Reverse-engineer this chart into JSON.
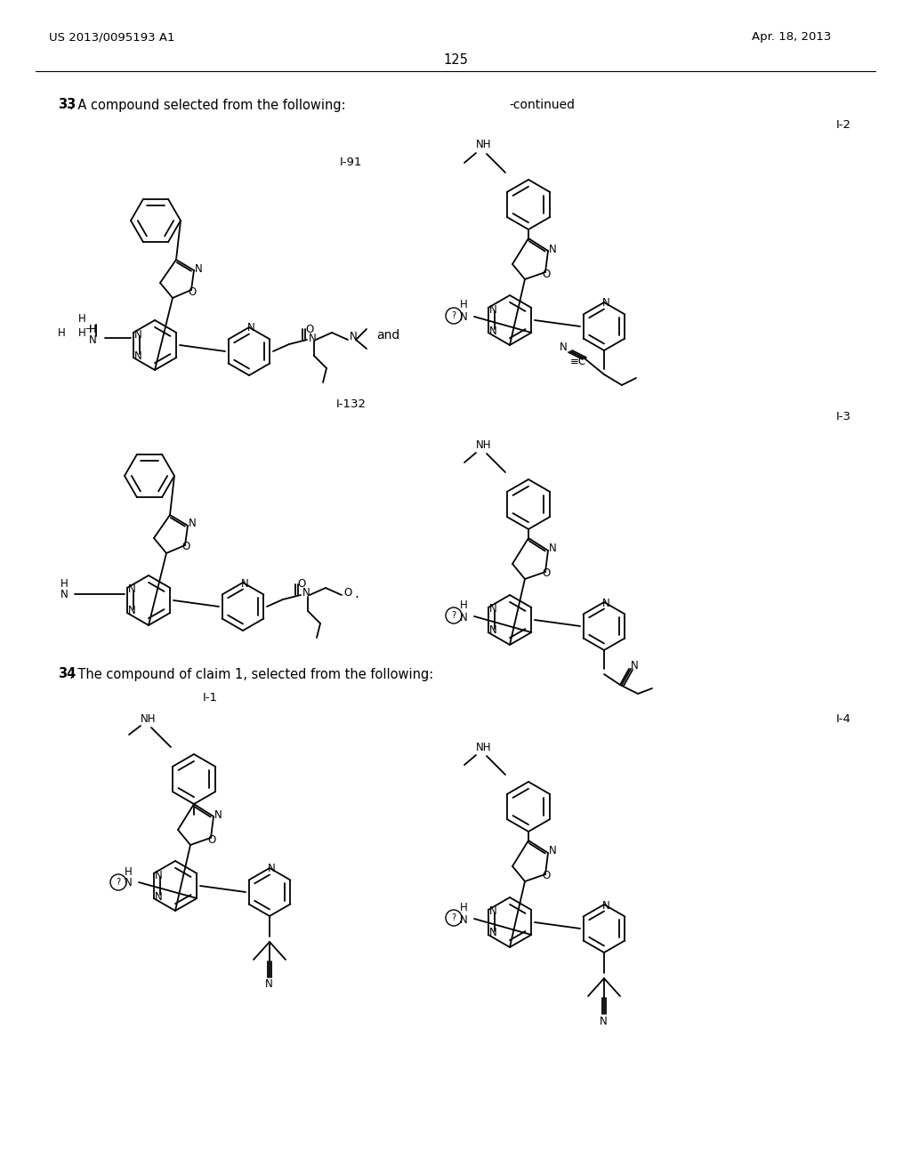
{
  "page_header_left": "US 2013/0095193 A1",
  "page_header_right": "Apr. 18, 2013",
  "page_number": "125",
  "background_color": "#ffffff",
  "claim33_bold": "33",
  "claim33_rest": ". A compound selected from the following:",
  "claim34_bold": "34",
  "claim34_rest": ". The compound of claim 1, selected from the following:",
  "continued_text": "-continued",
  "label_I91": "I-91",
  "label_I132": "I-132",
  "label_I1": "I-1",
  "label_I2": "I-2",
  "label_I3": "I-3",
  "label_I4": "I-4",
  "and_text": "and"
}
